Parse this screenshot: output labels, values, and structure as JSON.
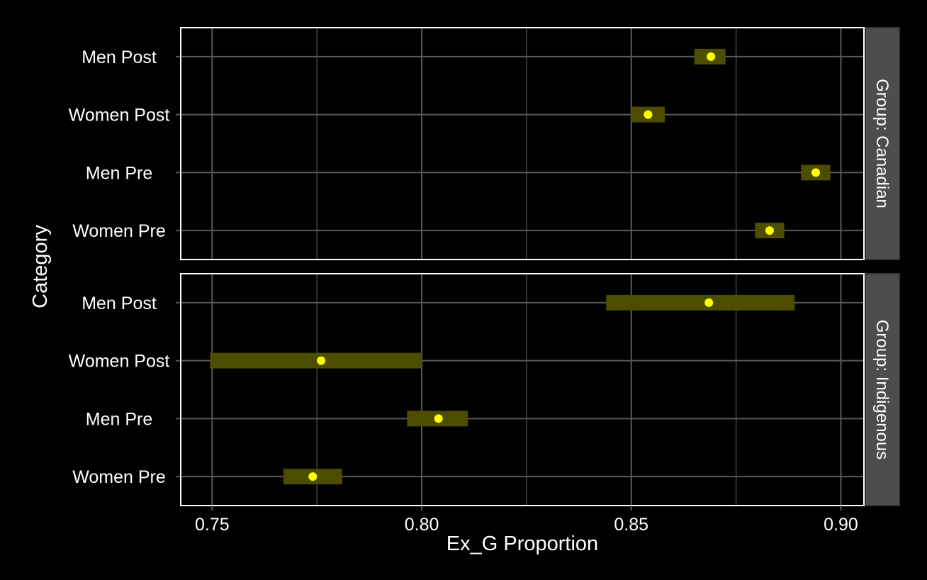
{
  "chart_data": {
    "type": "scatter",
    "xlabel": "Ex_G Proportion",
    "ylabel": "Category",
    "xlim": [
      0.7425,
      0.9055
    ],
    "x_ticks": [
      "0.75",
      "0.80",
      "0.85",
      "0.90"
    ],
    "x_tick_values": [
      0.75,
      0.8,
      0.85,
      0.9
    ],
    "categories": [
      "Men Post",
      "Women Post",
      "Men Pre",
      "Women Pre"
    ],
    "grid": true,
    "legend": "none",
    "colors": {
      "background": "#000000",
      "point": "#ffff00",
      "interval": "#4d4d00",
      "grid": "#595959",
      "panel_border": "#ffffff",
      "strip": "#4d4d4d",
      "text": "#ffffff"
    },
    "panels": [
      {
        "strip_label": "Group: Canadian",
        "series": [
          {
            "category": "Men Post",
            "x": 0.869,
            "lower": 0.865,
            "upper": 0.8725
          },
          {
            "category": "Women Post",
            "x": 0.854,
            "lower": 0.85,
            "upper": 0.858
          },
          {
            "category": "Men Pre",
            "x": 0.894,
            "lower": 0.8905,
            "upper": 0.8975
          },
          {
            "category": "Women Pre",
            "x": 0.883,
            "lower": 0.8795,
            "upper": 0.8865
          }
        ]
      },
      {
        "strip_label": "Group: Indigenous",
        "series": [
          {
            "category": "Men Post",
            "x": 0.8685,
            "lower": 0.844,
            "upper": 0.889
          },
          {
            "category": "Women Post",
            "x": 0.776,
            "lower": 0.7495,
            "upper": 0.8
          },
          {
            "category": "Men Pre",
            "x": 0.804,
            "lower": 0.7965,
            "upper": 0.811
          },
          {
            "category": "Women Pre",
            "x": 0.774,
            "lower": 0.767,
            "upper": 0.781
          }
        ]
      }
    ]
  }
}
